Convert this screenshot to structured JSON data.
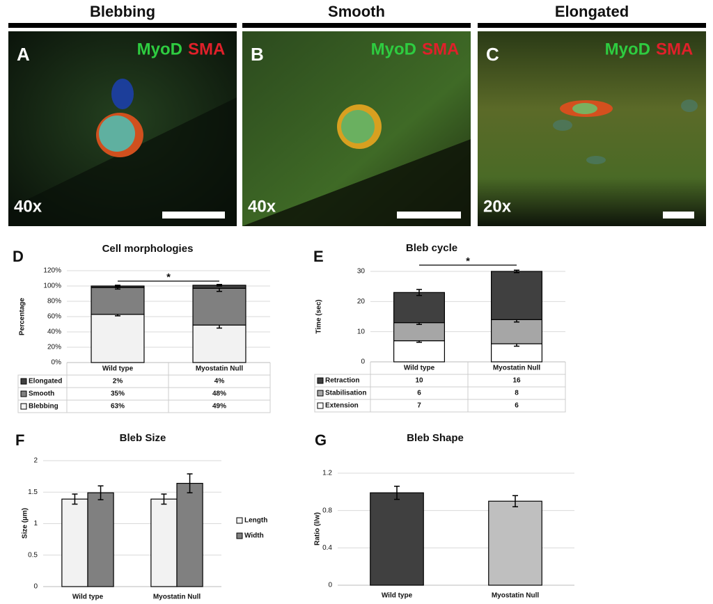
{
  "panels": [
    {
      "header": "Blebbing",
      "letter": "A",
      "stain1": "MyoD",
      "stain2": "SMA",
      "magnification": "40x"
    },
    {
      "header": "Smooth",
      "letter": "B",
      "stain1": "MyoD",
      "stain2": "SMA",
      "magnification": "40x"
    },
    {
      "header": "Elongated",
      "letter": "C",
      "stain1": "MyoD",
      "stain2": "SMA",
      "magnification": "20x"
    }
  ],
  "chart_data": [
    {
      "type": "bar",
      "stacked": true,
      "letter": "D",
      "title": "Cell morphologies",
      "y_label": "Percentage",
      "annotation": "*",
      "categories": [
        "Wild type",
        "Myostatin Null"
      ],
      "series": [
        {
          "name": "Blebbing",
          "color": "#f2f2f2",
          "values": [
            63,
            49
          ],
          "value_labels": [
            "63%",
            "49%"
          ],
          "errors": [
            2,
            4
          ]
        },
        {
          "name": "Smooth",
          "color": "#808080",
          "values": [
            35,
            48
          ],
          "value_labels": [
            "35%",
            "48%"
          ],
          "errors": [
            2,
            4
          ]
        },
        {
          "name": "Elongated",
          "color": "#404040",
          "values": [
            2,
            4
          ],
          "value_labels": [
            "2%",
            "4%"
          ],
          "errors": [
            1,
            1
          ]
        }
      ],
      "ylim": [
        0,
        120
      ],
      "yticks": [
        {
          "value": 0,
          "label": "0%"
        },
        {
          "value": 20,
          "label": "20%"
        },
        {
          "value": 40,
          "label": "40%"
        },
        {
          "value": 60,
          "label": "60%"
        },
        {
          "value": 80,
          "label": "80%"
        },
        {
          "value": 100,
          "label": "100%"
        },
        {
          "value": 120,
          "label": "120%"
        }
      ],
      "grid": true,
      "legend": "table"
    },
    {
      "type": "bar",
      "stacked": true,
      "letter": "E",
      "title": "Bleb cycle",
      "y_label": "Time (sec)",
      "annotation": "*",
      "categories": [
        "Wild type",
        "Myostatin Null"
      ],
      "series": [
        {
          "name": "Extension",
          "color": "#ffffff",
          "values": [
            7,
            6
          ],
          "errors": [
            0.5,
            0.8
          ]
        },
        {
          "name": "Stabilisation",
          "color": "#a6a6a6",
          "values": [
            6,
            8
          ],
          "errors": [
            0.6,
            0.8
          ]
        },
        {
          "name": "Retraction",
          "color": "#404040",
          "values": [
            10,
            16
          ],
          "errors": [
            1,
            0.4
          ]
        }
      ],
      "ylim": [
        0,
        30
      ],
      "yticks": [
        0,
        10,
        20,
        30
      ],
      "grid": true,
      "legend": "table"
    },
    {
      "type": "bar",
      "stacked": false,
      "letter": "F",
      "title": "Bleb Size",
      "y_label": "Size (µm)",
      "categories": [
        "Wild type",
        "Myostatin Null"
      ],
      "series": [
        {
          "name": "Length",
          "color": "#f2f2f2",
          "values": [
            1.39,
            1.39
          ],
          "errors": [
            0.08,
            0.08
          ]
        },
        {
          "name": "Width",
          "color": "#808080",
          "values": [
            1.49,
            1.64
          ],
          "errors": [
            0.11,
            0.15
          ]
        }
      ],
      "ylim": [
        0,
        2
      ],
      "yticks": [
        0,
        0.5,
        1,
        1.5,
        2
      ],
      "grid": true,
      "legend": "right"
    },
    {
      "type": "bar",
      "stacked": false,
      "letter": "G",
      "title": "Bleb Shape",
      "y_label": "Ratio (l/w)",
      "categories": [
        "Wild type",
        "Myostatin Null"
      ],
      "values": [
        0.99,
        0.9
      ],
      "errors": [
        0.07,
        0.06
      ],
      "colors": [
        "#404040",
        "#bfbfbf"
      ],
      "ylim": [
        0,
        1.2
      ],
      "yticks": [
        0,
        0.4,
        0.8,
        1.2
      ],
      "grid": true
    }
  ]
}
